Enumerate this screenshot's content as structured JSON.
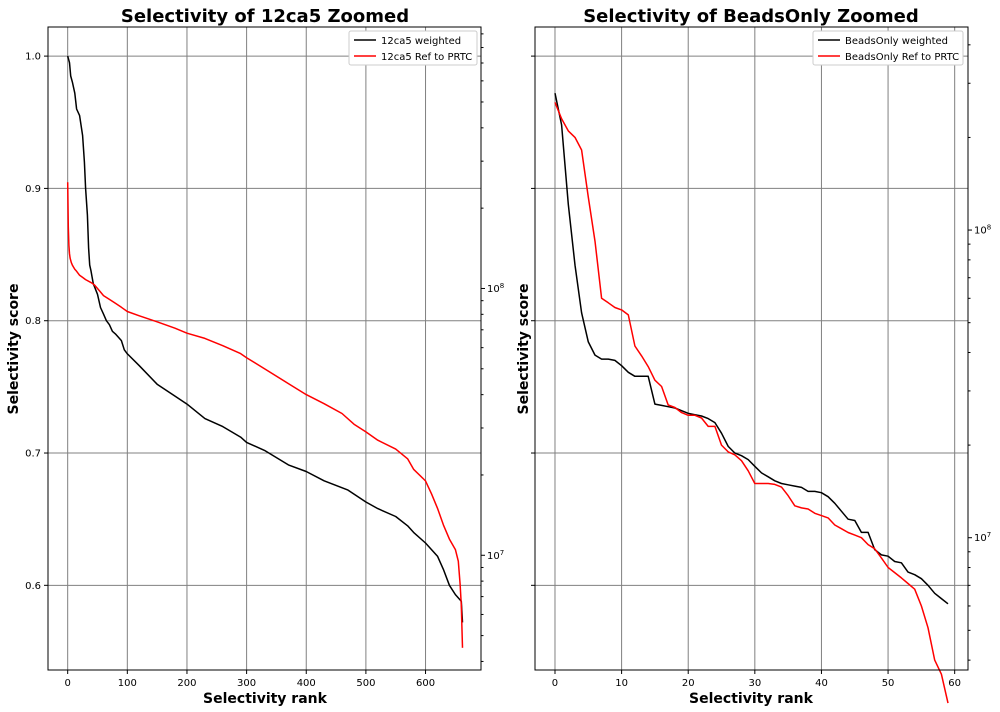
{
  "chart_data": [
    {
      "type": "line",
      "title": "Selectivity of 12ca5 Zoomed",
      "xlabel": "Selectivity rank",
      "ylabel": "Selectivity score",
      "xlim": [
        -33,
        693
      ],
      "ylim": [
        0.536,
        1.022
      ],
      "x_ticks": [
        "0",
        "100",
        "200",
        "300",
        "400",
        "500",
        "600"
      ],
      "y_ticks": [
        "0.6",
        "0.7",
        "0.8",
        "0.9",
        "1.0"
      ],
      "secondary_y": {
        "scale": "log",
        "tick_labels": [
          "10^8",
          "10^7"
        ],
        "ylim_log10": [
          6.57,
          8.98
        ]
      },
      "grid": true,
      "legend": "top-right",
      "colors": {
        "weighted": "#000000",
        "ref": "#ff0000"
      },
      "series": [
        {
          "name": "12ca5 weighted",
          "axis": "left",
          "x": [
            0,
            3,
            5,
            8,
            12,
            15,
            20,
            25,
            28,
            30,
            33,
            35,
            37,
            39,
            41,
            43,
            50,
            55,
            60,
            65,
            70,
            75,
            80,
            90,
            95,
            100,
            120,
            150,
            180,
            200,
            230,
            260,
            290,
            300,
            330,
            370,
            400,
            430,
            470,
            500,
            520,
            550,
            570,
            580,
            600,
            620,
            630,
            640,
            650,
            660,
            662
          ],
          "y": [
            1.0,
            0.995,
            0.985,
            0.98,
            0.972,
            0.96,
            0.955,
            0.94,
            0.92,
            0.9,
            0.88,
            0.855,
            0.842,
            0.838,
            0.833,
            0.828,
            0.82,
            0.81,
            0.805,
            0.8,
            0.797,
            0.792,
            0.79,
            0.785,
            0.778,
            0.775,
            0.766,
            0.752,
            0.743,
            0.737,
            0.726,
            0.72,
            0.712,
            0.708,
            0.702,
            0.691,
            0.686,
            0.679,
            0.672,
            0.663,
            0.658,
            0.652,
            0.645,
            0.64,
            0.632,
            0.622,
            0.612,
            0.6,
            0.593,
            0.588,
            0.572
          ]
        },
        {
          "name": "12ca5 Ref to PRTC",
          "axis": "right",
          "x": [
            0,
            1,
            2,
            3,
            4,
            6,
            8,
            10,
            12,
            15,
            20,
            25,
            30,
            40,
            45,
            50,
            55,
            60,
            70,
            80,
            90,
            100,
            120,
            150,
            180,
            200,
            230,
            260,
            290,
            300,
            330,
            370,
            400,
            430,
            460,
            480,
            500,
            520,
            550,
            570,
            580,
            600,
            610,
            620,
            630,
            640,
            650,
            655,
            658,
            660,
            662
          ],
          "y": [
            250000000.0,
            170000000.0,
            145000000.0,
            135000000.0,
            130000000.0,
            125000000.0,
            122000000.0,
            120000000.0,
            118000000.0,
            116000000.0,
            112000000.0,
            110000000.0,
            108000000.0,
            105000000.0,
            103000000.0,
            100000000.0,
            97000000.0,
            94000000.0,
            91000000.0,
            88000000.0,
            85000000.0,
            82000000.0,
            79000000.0,
            75000000.0,
            71000000.0,
            68000000.0,
            65000000.0,
            61000000.0,
            57000000.0,
            55000000.0,
            50000000.0,
            44000000.0,
            40000000.0,
            37000000.0,
            34000000.0,
            31000000.0,
            29000000.0,
            27000000.0,
            25000000.0,
            23000000.0,
            21000000.0,
            19000000.0,
            17000000.0,
            15000000.0,
            13000000.0,
            11500000.0,
            10500000.0,
            9500000.0,
            7800000.0,
            6500000.0,
            4500000.0
          ]
        }
      ]
    },
    {
      "type": "line",
      "title": "Selectivity of BeadsOnly Zoomed",
      "xlabel": "Selectivity rank",
      "ylabel": "Selectivity score",
      "xlim": [
        -3,
        62
      ],
      "ylim": [
        0.536,
        1.022
      ],
      "x_ticks": [
        "0",
        "10",
        "20",
        "30",
        "40",
        "50",
        "60"
      ],
      "y_ticks": [],
      "secondary_y": {
        "scale": "log",
        "tick_labels": [
          "10^8",
          "10^7"
        ],
        "ylim_log10": [
          6.57,
          8.66
        ]
      },
      "grid": true,
      "legend": "top-right",
      "colors": {
        "weighted": "#000000",
        "ref": "#ff0000"
      },
      "series": [
        {
          "name": "BeadsOnly weighted",
          "axis": "left",
          "x": [
            0,
            1,
            2,
            3,
            4,
            5,
            6,
            7,
            8,
            9,
            10,
            11,
            12,
            13,
            14,
            15,
            16,
            17,
            18,
            19,
            20,
            21,
            22,
            23,
            24,
            25,
            26,
            27,
            28,
            29,
            30,
            31,
            32,
            33,
            34,
            35,
            36,
            37,
            38,
            39,
            40,
            41,
            42,
            43,
            44,
            45,
            46,
            47,
            48,
            49,
            50,
            51,
            52,
            53,
            54,
            55,
            56,
            57,
            58,
            59
          ],
          "y": [
            0.972,
            0.948,
            0.888,
            0.842,
            0.806,
            0.784,
            0.774,
            0.771,
            0.771,
            0.77,
            0.766,
            0.761,
            0.758,
            0.758,
            0.758,
            0.737,
            0.736,
            0.735,
            0.734,
            0.732,
            0.73,
            0.729,
            0.728,
            0.726,
            0.723,
            0.715,
            0.705,
            0.7,
            0.698,
            0.695,
            0.69,
            0.685,
            0.682,
            0.679,
            0.677,
            0.676,
            0.675,
            0.674,
            0.671,
            0.671,
            0.67,
            0.667,
            0.662,
            0.656,
            0.65,
            0.649,
            0.64,
            0.64,
            0.627,
            0.623,
            0.622,
            0.618,
            0.617,
            0.61,
            0.608,
            0.605,
            0.6,
            0.594,
            0.59,
            0.586
          ]
        },
        {
          "name": "BeadsOnly Ref to PRTC",
          "axis": "right",
          "x": [
            0,
            1,
            2,
            3,
            4,
            5,
            6,
            7,
            8,
            9,
            10,
            11,
            12,
            13,
            14,
            15,
            16,
            17,
            18,
            19,
            20,
            21,
            22,
            23,
            24,
            25,
            26,
            27,
            28,
            29,
            30,
            31,
            32,
            33,
            34,
            35,
            36,
            37,
            38,
            39,
            40,
            41,
            42,
            43,
            44,
            45,
            46,
            47,
            48,
            49,
            50,
            51,
            52,
            53,
            54,
            55,
            56,
            57,
            58,
            59
          ],
          "y": [
            260000000.0,
            230000000.0,
            210000000.0,
            200000000.0,
            182000000.0,
            128000000.0,
            92000000.0,
            60000000.0,
            58000000.0,
            56000000.0,
            55000000.0,
            53000000.0,
            42000000.0,
            39000000.0,
            36000000.0,
            32500000.0,
            31000000.0,
            27000000.0,
            26500000.0,
            25500000.0,
            25000000.0,
            25000000.0,
            24500000.0,
            23000000.0,
            23000000.0,
            20000000.0,
            19000000.0,
            18600000.0,
            17800000.0,
            16500000.0,
            15000000.0,
            15000000.0,
            15000000.0,
            14900000.0,
            14600000.0,
            13700000.0,
            12700000.0,
            12500000.0,
            12400000.0,
            12000000.0,
            11800000.0,
            11600000.0,
            11000000.0,
            10700000.0,
            10400000.0,
            10200000.0,
            10000000.0,
            9500000.0,
            9200000.0,
            8600000.0,
            8000000.0,
            7700000.0,
            7400000.0,
            7100000.0,
            6800000.0,
            6000000.0,
            5100000.0,
            4000000.0,
            3600000.0,
            2900000.0
          ]
        }
      ]
    }
  ]
}
